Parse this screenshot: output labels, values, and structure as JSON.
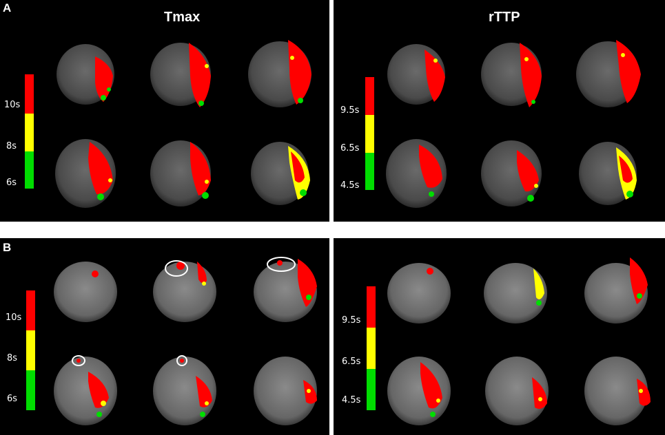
{
  "panels": [
    {
      "label": "A",
      "left": {
        "title": "Tmax",
        "ticks": [
          "10s",
          "8s",
          "6s"
        ]
      },
      "right": {
        "title": "rTTP",
        "ticks": [
          "9.5s",
          "6.5s",
          "4.5s"
        ]
      }
    },
    {
      "label": "B",
      "left": {
        "title": "",
        "ticks": [
          "10s",
          "8s",
          "6s"
        ]
      },
      "right": {
        "title": "",
        "ticks": [
          "9.5s",
          "6.5s",
          "4.5s"
        ]
      }
    }
  ],
  "colors": {
    "high": "#ff0000",
    "mid": "#ffff00",
    "low": "#00dd00",
    "background": "#000000"
  },
  "annotations": "white ellipses marking small frontal lesions in panel B Tmax"
}
